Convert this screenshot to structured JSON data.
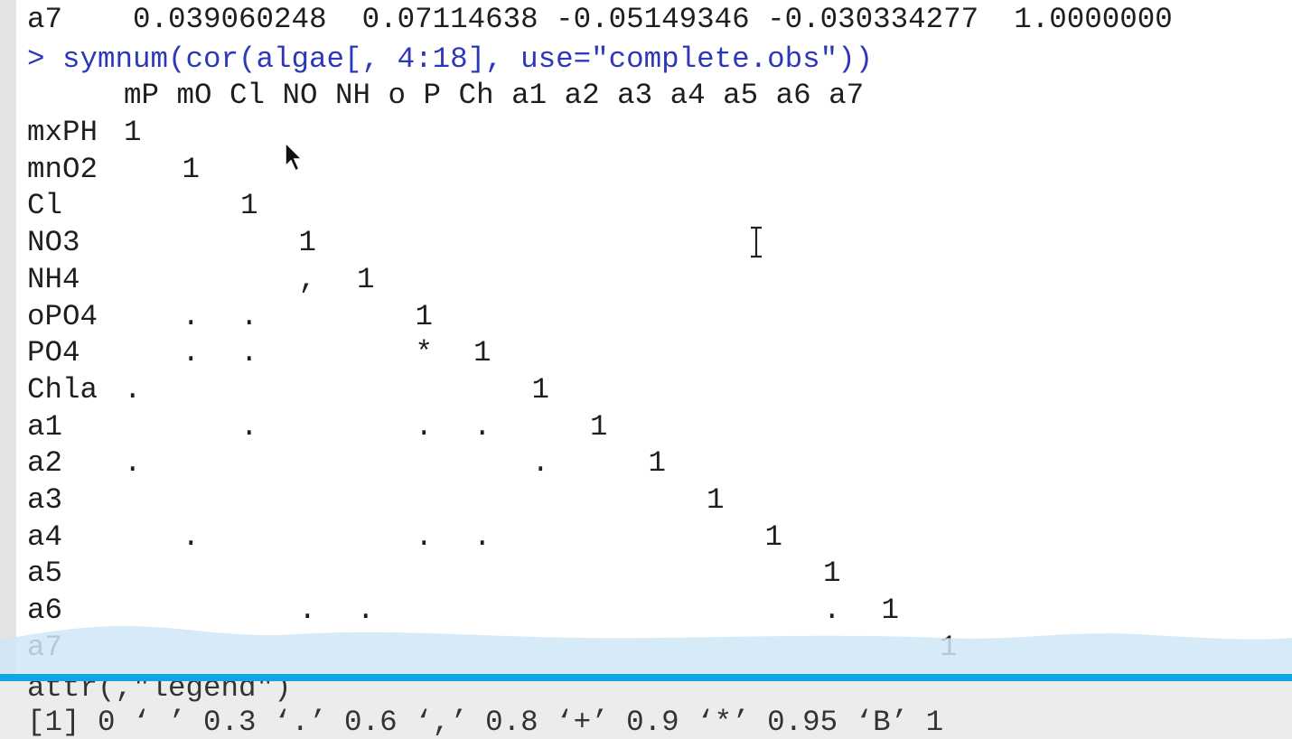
{
  "console": {
    "top_line": {
      "row": "a7",
      "values": "0.039060248  0.07114638 -0.05149346 -0.030334277  1.0000000"
    },
    "command": "> symnum(cor(algae[, 4:18], use=\"complete.obs\"))",
    "header": "mP mO Cl NO NH o P Ch a1 a2 a3 a4 a5 a6 a7",
    "rows": [
      {
        "label": "mxPH",
        "cells": [
          {
            "col": 0,
            "sym": "1"
          }
        ]
      },
      {
        "label": "mnO2",
        "cells": [
          {
            "col": 1,
            "sym": "1"
          }
        ]
      },
      {
        "label": "Cl",
        "cells": [
          {
            "col": 2,
            "sym": "1"
          }
        ]
      },
      {
        "label": "NO3",
        "cells": [
          {
            "col": 3,
            "sym": "1"
          }
        ]
      },
      {
        "label": "NH4",
        "cells": [
          {
            "col": 3,
            "sym": ","
          },
          {
            "col": 4,
            "sym": "1"
          }
        ]
      },
      {
        "label": "oPO4",
        "cells": [
          {
            "col": 1,
            "sym": "."
          },
          {
            "col": 2,
            "sym": "."
          },
          {
            "col": 5,
            "sym": "1"
          }
        ]
      },
      {
        "label": "PO4",
        "cells": [
          {
            "col": 1,
            "sym": "."
          },
          {
            "col": 2,
            "sym": "."
          },
          {
            "col": 5,
            "sym": "*"
          },
          {
            "col": 6,
            "sym": "1"
          }
        ]
      },
      {
        "label": "Chla",
        "cells": [
          {
            "col": 0,
            "sym": "."
          },
          {
            "col": 7,
            "sym": "1"
          }
        ]
      },
      {
        "label": "a1",
        "cells": [
          {
            "col": 2,
            "sym": "."
          },
          {
            "col": 5,
            "sym": "."
          },
          {
            "col": 6,
            "sym": "."
          },
          {
            "col": 8,
            "sym": "1"
          }
        ]
      },
      {
        "label": "a2",
        "cells": [
          {
            "col": 0,
            "sym": "."
          },
          {
            "col": 7,
            "sym": "."
          },
          {
            "col": 9,
            "sym": "1"
          }
        ]
      },
      {
        "label": "a3",
        "cells": [
          {
            "col": 10,
            "sym": "1"
          }
        ]
      },
      {
        "label": "a4",
        "cells": [
          {
            "col": 1,
            "sym": "."
          },
          {
            "col": 5,
            "sym": "."
          },
          {
            "col": 6,
            "sym": "."
          },
          {
            "col": 11,
            "sym": "1"
          }
        ]
      },
      {
        "label": "a5",
        "cells": [
          {
            "col": 12,
            "sym": "1"
          }
        ]
      },
      {
        "label": "a6",
        "cells": [
          {
            "col": 3,
            "sym": "."
          },
          {
            "col": 4,
            "sym": "."
          },
          {
            "col": 12,
            "sym": "."
          },
          {
            "col": 13,
            "sym": "1"
          }
        ]
      },
      {
        "label": "a7",
        "cells": [
          {
            "col": 14,
            "sym": "1"
          }
        ]
      }
    ],
    "attr_line": "attr(,\"legend\")",
    "legend_line": "[1] 0 ‘ ’ 0.3 ‘.’ 0.6 ‘,’ 0.8 ‘+’ 0.9 ‘*’ 0.95 ‘B’ 1"
  },
  "colors": {
    "command_text": "#2c38b8",
    "output_text": "#1e1e1e",
    "accent_bar": "#10a5e4",
    "watermark": "#cfe6f6"
  }
}
